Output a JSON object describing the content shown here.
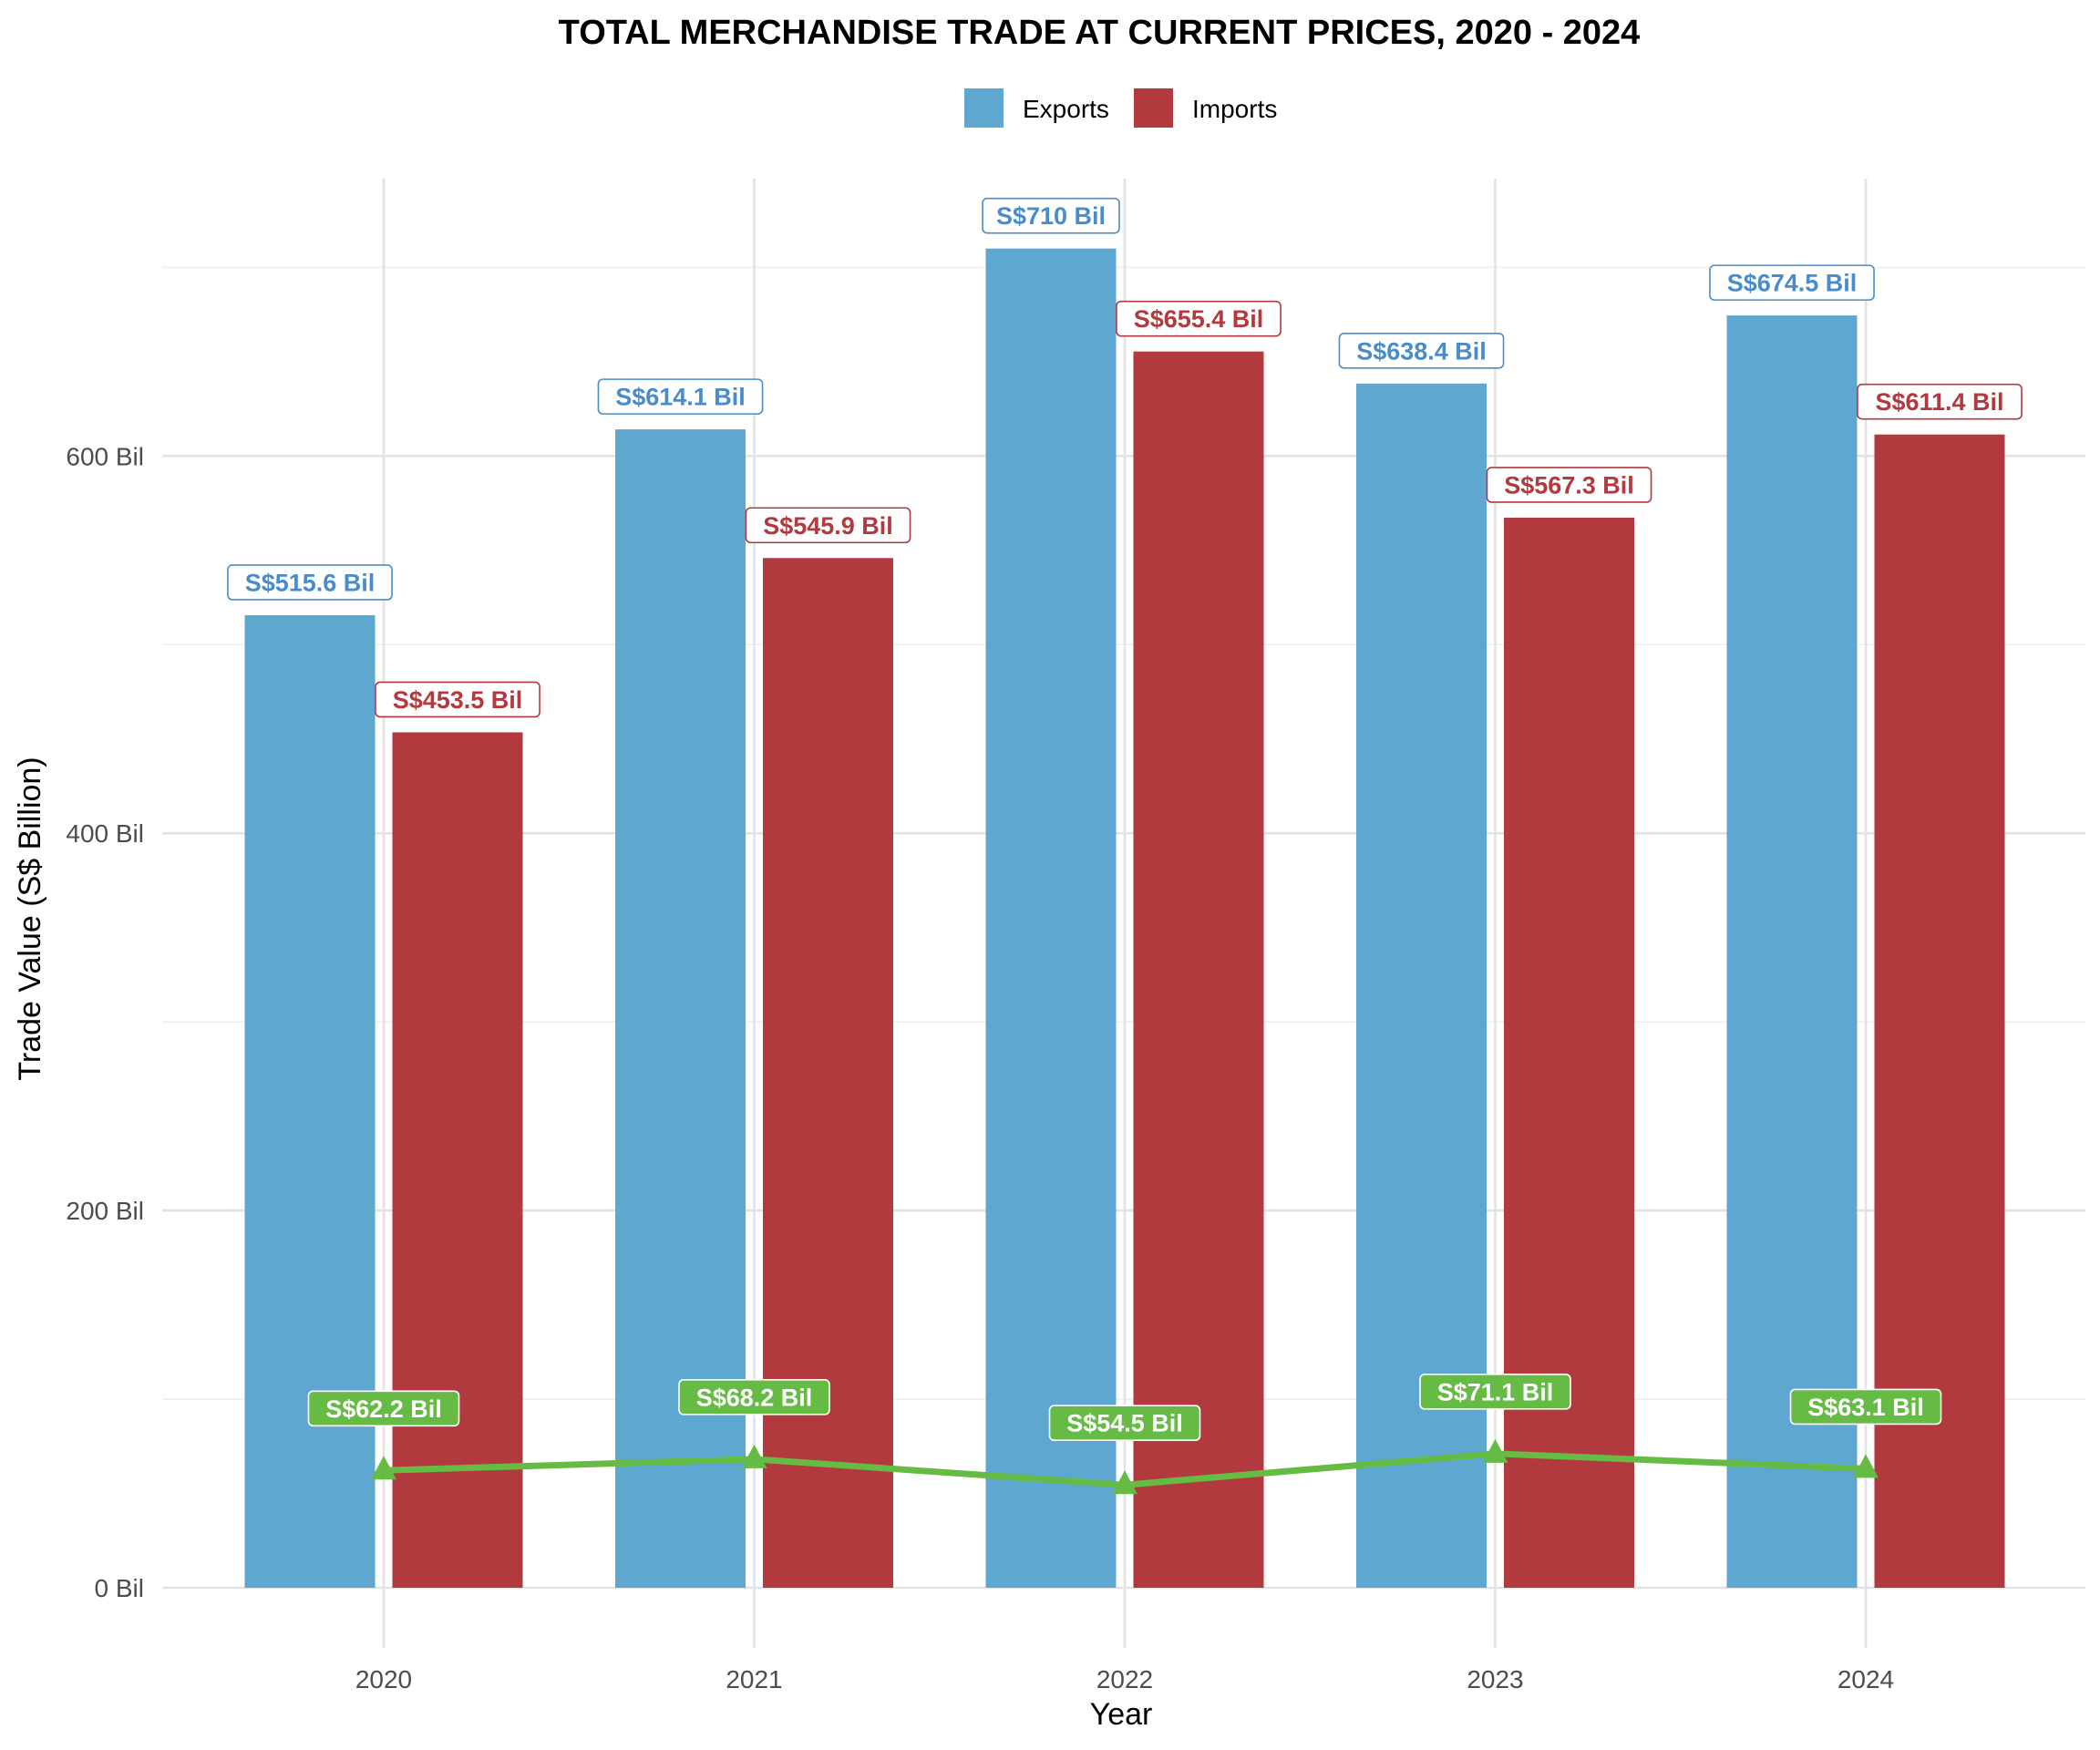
{
  "chart_data": {
    "type": "bar",
    "title": "TOTAL MERCHANDISE TRADE AT CURRENT PRICES, 2020 - 2024",
    "xlabel": "Year",
    "ylabel": "Trade Value (S$ Billion)",
    "categories": [
      "2020",
      "2021",
      "2022",
      "2023",
      "2024"
    ],
    "ylim": [
      -15,
      745
    ],
    "y_ticks": [
      0,
      200,
      400,
      600
    ],
    "y_tick_labels": [
      "0 Bil",
      "200 Bil",
      "400 Bil",
      "600 Bil"
    ],
    "y_minor_ticks": [
      100,
      300,
      500,
      700
    ],
    "grid": true,
    "legend_position": "top",
    "series": [
      {
        "name": "Exports",
        "type": "bar",
        "color": "#5da7d1",
        "label_color": "#4a8cc9",
        "values": [
          515.6,
          614.1,
          710,
          638.4,
          674.5
        ],
        "labels": [
          "S$515.6 Bil",
          "S$614.1 Bil",
          "S$710 Bil",
          "S$638.4 Bil",
          "S$674.5 Bil"
        ]
      },
      {
        "name": "Imports",
        "type": "bar",
        "color": "#b2393e",
        "label_color": "#b2393e",
        "values": [
          453.5,
          545.9,
          655.4,
          567.3,
          611.4
        ],
        "labels": [
          "S$453.5 Bil",
          "S$545.9 Bil",
          "S$655.4 Bil",
          "S$567.3 Bil",
          "S$611.4 Bil"
        ]
      },
      {
        "type": "line",
        "color": "#66bb44",
        "values": [
          62.2,
          68.2,
          54.5,
          71.1,
          63.1
        ],
        "labels": [
          "S$62.2 Bil",
          "S$68.2 Bil",
          "S$54.5 Bil",
          "S$71.1 Bil",
          "S$63.1 Bil"
        ]
      }
    ]
  }
}
